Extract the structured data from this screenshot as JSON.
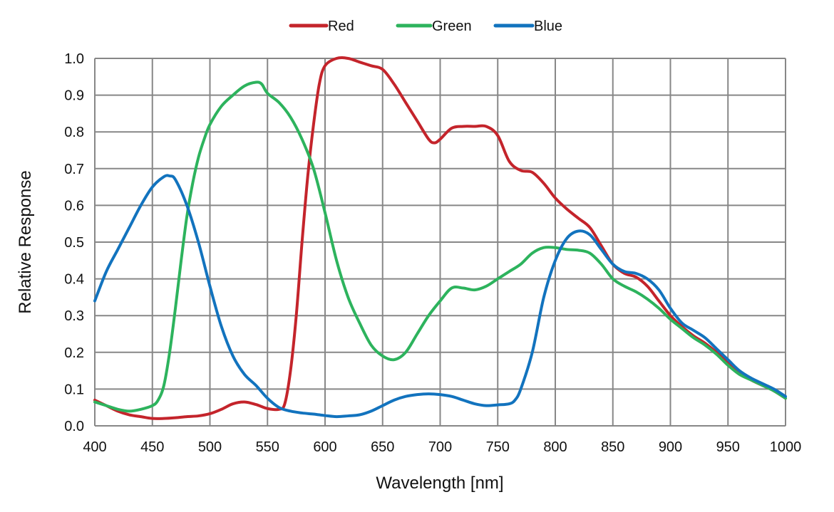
{
  "chart_data": {
    "type": "line",
    "xlabel": "Wavelength [nm]",
    "ylabel": "Relative Response",
    "xlim": [
      400,
      1000
    ],
    "ylim": [
      0.0,
      1.0
    ],
    "xticks": [
      "400",
      "450",
      "500",
      "550",
      "600",
      "650",
      "700",
      "750",
      "800",
      "850",
      "900",
      "950",
      "1000"
    ],
    "yticks": [
      "0.0",
      "0.1",
      "0.2",
      "0.3",
      "0.4",
      "0.5",
      "0.6",
      "0.7",
      "0.8",
      "0.9",
      "1.0"
    ],
    "grid": true,
    "legend_position": "top-center",
    "series": [
      {
        "name": "Red",
        "color": "#c4242b",
        "x": [
          400,
          410,
          420,
          430,
          440,
          450,
          460,
          470,
          480,
          490,
          500,
          510,
          520,
          530,
          540,
          550,
          560,
          565,
          570,
          575,
          580,
          585,
          590,
          595,
          600,
          610,
          620,
          630,
          640,
          650,
          660,
          670,
          680,
          690,
          695,
          700,
          710,
          720,
          730,
          740,
          750,
          760,
          770,
          780,
          790,
          800,
          810,
          820,
          830,
          840,
          850,
          860,
          870,
          880,
          890,
          900,
          910,
          920,
          930,
          940,
          950,
          960,
          970,
          980,
          990,
          1000
        ],
        "y": [
          0.07,
          0.055,
          0.04,
          0.03,
          0.025,
          0.02,
          0.02,
          0.022,
          0.025,
          0.027,
          0.033,
          0.045,
          0.06,
          0.065,
          0.058,
          0.047,
          0.045,
          0.06,
          0.15,
          0.3,
          0.5,
          0.68,
          0.82,
          0.93,
          0.98,
          1.0,
          1.0,
          0.99,
          0.98,
          0.97,
          0.93,
          0.88,
          0.83,
          0.78,
          0.77,
          0.78,
          0.81,
          0.815,
          0.815,
          0.815,
          0.79,
          0.72,
          0.695,
          0.69,
          0.66,
          0.62,
          0.59,
          0.565,
          0.54,
          0.49,
          0.44,
          0.415,
          0.405,
          0.38,
          0.34,
          0.3,
          0.27,
          0.245,
          0.225,
          0.2,
          0.17,
          0.145,
          0.125,
          0.11,
          0.095,
          0.075
        ]
      },
      {
        "name": "Green",
        "color": "#2db35d",
        "x": [
          400,
          410,
          420,
          430,
          440,
          450,
          455,
          460,
          465,
          470,
          475,
          480,
          485,
          490,
          495,
          500,
          510,
          520,
          530,
          540,
          545,
          550,
          560,
          570,
          580,
          590,
          600,
          610,
          620,
          630,
          640,
          650,
          660,
          670,
          680,
          690,
          700,
          710,
          720,
          730,
          740,
          750,
          760,
          770,
          780,
          790,
          800,
          810,
          820,
          830,
          840,
          850,
          860,
          870,
          880,
          890,
          900,
          910,
          920,
          930,
          940,
          950,
          960,
          970,
          980,
          990,
          1000
        ],
        "y": [
          0.065,
          0.055,
          0.045,
          0.04,
          0.045,
          0.055,
          0.07,
          0.11,
          0.2,
          0.32,
          0.45,
          0.57,
          0.66,
          0.73,
          0.78,
          0.82,
          0.87,
          0.9,
          0.925,
          0.935,
          0.93,
          0.905,
          0.88,
          0.84,
          0.78,
          0.7,
          0.58,
          0.45,
          0.35,
          0.28,
          0.22,
          0.19,
          0.18,
          0.2,
          0.25,
          0.3,
          0.34,
          0.375,
          0.375,
          0.37,
          0.38,
          0.4,
          0.42,
          0.44,
          0.47,
          0.485,
          0.485,
          0.48,
          0.478,
          0.47,
          0.44,
          0.4,
          0.38,
          0.365,
          0.345,
          0.32,
          0.29,
          0.265,
          0.24,
          0.22,
          0.195,
          0.165,
          0.14,
          0.125,
          0.11,
          0.095,
          0.075
        ]
      },
      {
        "name": "Blue",
        "color": "#1273be",
        "x": [
          400,
          410,
          420,
          430,
          440,
          450,
          460,
          465,
          470,
          480,
          490,
          500,
          510,
          520,
          530,
          540,
          550,
          560,
          570,
          580,
          590,
          600,
          610,
          620,
          630,
          640,
          650,
          660,
          670,
          680,
          690,
          700,
          710,
          720,
          730,
          740,
          750,
          760,
          765,
          770,
          780,
          790,
          800,
          810,
          820,
          830,
          840,
          850,
          860,
          870,
          880,
          890,
          900,
          910,
          920,
          930,
          940,
          950,
          960,
          970,
          980,
          990,
          1000
        ],
        "y": [
          0.34,
          0.42,
          0.48,
          0.54,
          0.6,
          0.65,
          0.678,
          0.68,
          0.67,
          0.6,
          0.5,
          0.38,
          0.27,
          0.19,
          0.14,
          0.11,
          0.075,
          0.05,
          0.04,
          0.035,
          0.032,
          0.028,
          0.025,
          0.027,
          0.03,
          0.04,
          0.055,
          0.07,
          0.08,
          0.085,
          0.087,
          0.085,
          0.08,
          0.07,
          0.06,
          0.055,
          0.057,
          0.06,
          0.07,
          0.1,
          0.2,
          0.35,
          0.45,
          0.51,
          0.53,
          0.52,
          0.48,
          0.44,
          0.42,
          0.415,
          0.4,
          0.37,
          0.32,
          0.28,
          0.26,
          0.24,
          0.21,
          0.18,
          0.15,
          0.13,
          0.115,
          0.1,
          0.08
        ]
      }
    ]
  }
}
